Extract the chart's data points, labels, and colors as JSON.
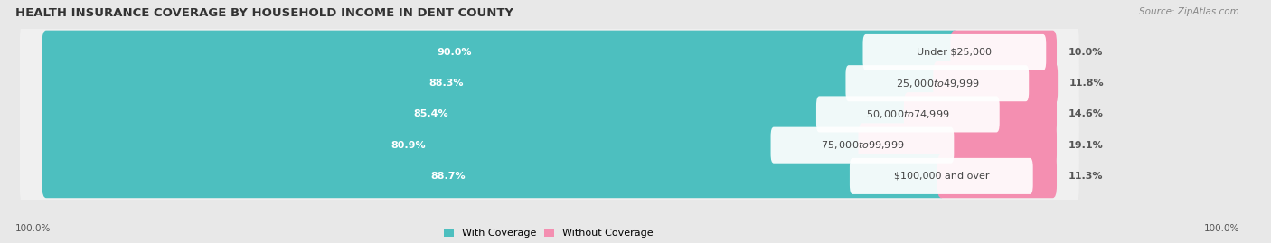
{
  "title": "HEALTH INSURANCE COVERAGE BY HOUSEHOLD INCOME IN DENT COUNTY",
  "source": "Source: ZipAtlas.com",
  "categories": [
    "Under $25,000",
    "$25,000 to $49,999",
    "$50,000 to $74,999",
    "$75,000 to $99,999",
    "$100,000 and over"
  ],
  "with_coverage": [
    90.0,
    88.3,
    85.4,
    80.9,
    88.7
  ],
  "without_coverage": [
    10.0,
    11.8,
    14.6,
    19.1,
    11.3
  ],
  "coverage_color": "#4DBFBF",
  "no_coverage_color": "#F48FB1",
  "label_color_coverage": "#ffffff",
  "background_color": "#e8e8e8",
  "bar_background": "#f8f8f8",
  "row_bg_color": "#dcdcdc",
  "bar_height": 0.62,
  "title_fontsize": 9.5,
  "source_fontsize": 7.5,
  "label_fontsize": 8,
  "axis_label_fontsize": 7.5,
  "legend_fontsize": 8,
  "x_left_label": "100.0%",
  "x_right_label": "100.0%",
  "total_width": 100,
  "xlim_left": -3,
  "xlim_right": 120
}
